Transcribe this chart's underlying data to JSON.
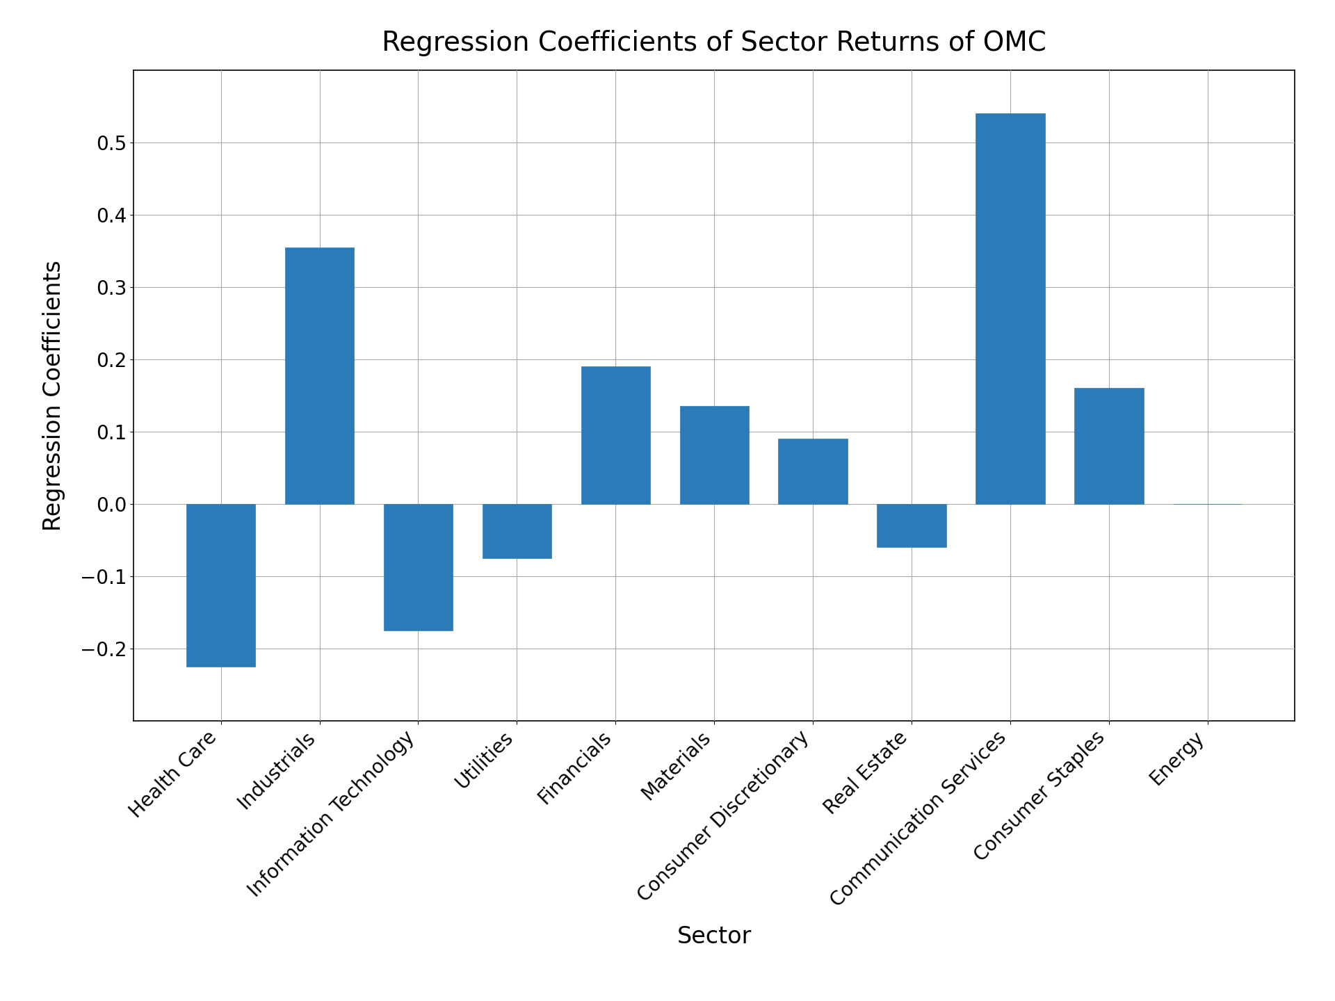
{
  "title": "Regression Coefficients of Sector Returns of OMC",
  "xlabel": "Sector",
  "ylabel": "Regression Coefficients",
  "categories": [
    "Health Care",
    "Industrials",
    "Information Technology",
    "Utilities",
    "Financials",
    "Materials",
    "Consumer Discretionary",
    "Real Estate",
    "Communication Services",
    "Consumer Staples",
    "Energy"
  ],
  "values": [
    -0.225,
    0.355,
    -0.175,
    -0.075,
    0.19,
    0.135,
    0.09,
    -0.06,
    0.54,
    0.16,
    0.0
  ],
  "bar_color": "#2b7bb9",
  "bar_edgecolor": "#2b7bb9",
  "ylim": [
    -0.3,
    0.6
  ],
  "yticks": [
    -0.2,
    -0.1,
    0.0,
    0.1,
    0.2,
    0.3,
    0.4,
    0.5
  ],
  "grid": true,
  "background_color": "#ffffff",
  "title_fontsize": 28,
  "axis_label_fontsize": 24,
  "tick_fontsize": 20,
  "bar_width": 0.7
}
